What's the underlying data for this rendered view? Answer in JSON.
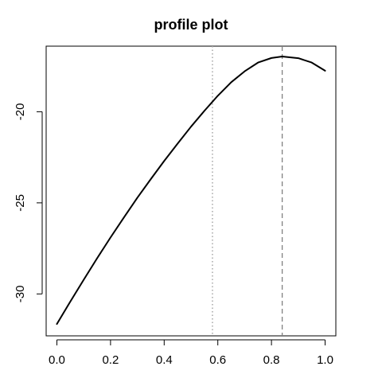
{
  "chart_data": {
    "type": "line",
    "title": "profile plot",
    "xlabel": "",
    "ylabel": "",
    "xlim": [
      -0.04,
      1.04
    ],
    "ylim": [
      -32.3,
      -16.4
    ],
    "x_ticks": [
      0.0,
      0.2,
      0.4,
      0.6,
      0.8,
      1.0
    ],
    "x_tick_labels": [
      "0.0",
      "0.2",
      "0.4",
      "0.6",
      "0.8",
      "1.0"
    ],
    "y_ticks": [
      -20,
      -25,
      -30
    ],
    "y_tick_labels": [
      "-20",
      "-25",
      "-30"
    ],
    "grid": false,
    "series": [
      {
        "values_x": [
          0.0,
          0.05,
          0.1,
          0.15,
          0.2,
          0.25,
          0.3,
          0.35,
          0.4,
          0.45,
          0.5,
          0.55,
          0.6,
          0.65,
          0.7,
          0.75,
          0.8,
          0.84,
          0.9,
          0.95,
          1.0
        ],
        "values_y": [
          -31.65,
          -30.42,
          -29.22,
          -28.04,
          -26.9,
          -25.8,
          -24.72,
          -23.7,
          -22.7,
          -21.75,
          -20.82,
          -19.95,
          -19.12,
          -18.38,
          -17.78,
          -17.3,
          -17.05,
          -16.97,
          -17.06,
          -17.3,
          -17.75
        ],
        "color": "#000000"
      }
    ],
    "reference_lines": [
      {
        "x": 0.58,
        "style": "dotted",
        "color": "#a6a6a6"
      },
      {
        "x": 0.84,
        "style": "dashed",
        "color": "#808080"
      }
    ]
  }
}
